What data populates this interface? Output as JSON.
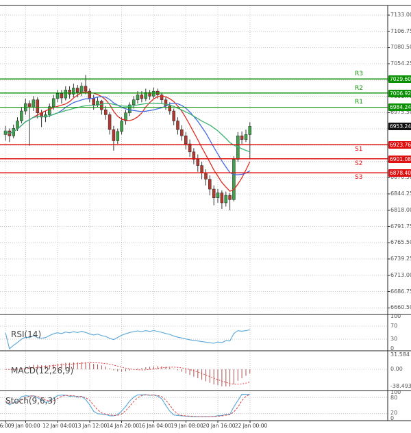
{
  "chart_data": {
    "type": "candlestick",
    "x_axis": {
      "labels": [
        {
          "text": "6:00",
          "index": 0
        },
        {
          "text": "9 Jan 00:00",
          "index": 5
        },
        {
          "text": "12 Jan 04:00",
          "index": 13
        },
        {
          "text": "13 Jan 12:00",
          "index": 21
        },
        {
          "text": "14 Jan 20:00",
          "index": 29
        },
        {
          "text": "16 Jan 04:00",
          "index": 37
        },
        {
          "text": "19 Jan 08:00",
          "index": 45
        },
        {
          "text": "20 Jan 16:00",
          "index": 53
        },
        {
          "text": "22 Jan 00:00",
          "index": 61
        }
      ]
    },
    "price_axis": {
      "tick_labels": [
        "7133.00",
        "7106.75",
        "7080.50",
        "7054.25",
        "7028.00",
        "7001.75",
        "6975.50",
        "6949.25",
        "6923.00",
        "6896.75",
        "6870.50",
        "6844.25",
        "6818.00",
        "6791.75",
        "6765.50",
        "6739.25",
        "6713.00",
        "6686.75",
        "6660.50"
      ]
    },
    "candles": [
      [
        6940,
        6954,
        6930,
        6946
      ],
      [
        6946,
        6950,
        6928,
        6938
      ],
      [
        6938,
        6956,
        6934,
        6950
      ],
      [
        6950,
        6968,
        6946,
        6962
      ],
      [
        6962,
        6984,
        6958,
        6978
      ],
      [
        6978,
        6998,
        6972,
        6990
      ],
      [
        6990,
        6995,
        6922,
        6984
      ],
      [
        6984,
        7002,
        6978,
        6996
      ],
      [
        6996,
        7000,
        6966,
        6975
      ],
      [
        6975,
        6980,
        6952,
        6968
      ],
      [
        6968,
        6978,
        6960,
        6972
      ],
      [
        6972,
        6990,
        6968,
        6985
      ],
      [
        6985,
        7004,
        6980,
        6998
      ],
      [
        6998,
        7012,
        6992,
        7006
      ],
      [
        7006,
        7012,
        6990,
        6999
      ],
      [
        6999,
        7018,
        6995,
        7012
      ],
      [
        7012,
        7018,
        6998,
        7005
      ],
      [
        7005,
        7022,
        7000,
        7015
      ],
      [
        7015,
        7020,
        7000,
        7008
      ],
      [
        7008,
        7024,
        7002,
        7018
      ],
      [
        7018,
        7036,
        7005,
        7010
      ],
      [
        7010,
        7014,
        6992,
        6998
      ],
      [
        6998,
        7004,
        6980,
        6988
      ],
      [
        6988,
        7000,
        6984,
        6994
      ],
      [
        6994,
        6996,
        6972,
        6980
      ],
      [
        6980,
        6986,
        6964,
        6972
      ],
      [
        6972,
        6976,
        6940,
        6948
      ],
      [
        6948,
        6954,
        6914,
        6930
      ],
      [
        6930,
        6950,
        6925,
        6945
      ],
      [
        6945,
        6968,
        6940,
        6962
      ],
      [
        6962,
        6980,
        6956,
        6975
      ],
      [
        6975,
        6992,
        6970,
        6988
      ],
      [
        6988,
        7002,
        6982,
        6996
      ],
      [
        6996,
        7010,
        6990,
        7004
      ],
      [
        7004,
        7010,
        6992,
        6998
      ],
      [
        6998,
        7014,
        6994,
        7008
      ],
      [
        7008,
        7012,
        6996,
        7002
      ],
      [
        7002,
        7016,
        6998,
        7010
      ],
      [
        7010,
        7014,
        6998,
        7004
      ],
      [
        7004,
        7008,
        6990,
        6996
      ],
      [
        6996,
        7000,
        6980,
        6986
      ],
      [
        6986,
        6992,
        6972,
        6978
      ],
      [
        6978,
        6982,
        6955,
        6962
      ],
      [
        6962,
        6968,
        6940,
        6948
      ],
      [
        6948,
        6955,
        6930,
        6938
      ],
      [
        6938,
        6944,
        6916,
        6925
      ],
      [
        6925,
        6932,
        6904,
        6912
      ],
      [
        6912,
        6918,
        6892,
        6900
      ],
      [
        6900,
        6908,
        6880,
        6890
      ],
      [
        6890,
        6896,
        6868,
        6878
      ],
      [
        6878,
        6884,
        6858,
        6868
      ],
      [
        6868,
        6874,
        6842,
        6852
      ],
      [
        6852,
        6858,
        6826,
        6838
      ],
      [
        6838,
        6852,
        6830,
        6846
      ],
      [
        6846,
        6850,
        6820,
        6830
      ],
      [
        6830,
        6848,
        6824,
        6842
      ],
      [
        6842,
        6846,
        6818,
        6835
      ],
      [
        6835,
        6905,
        6832,
        6900
      ],
      [
        6900,
        6944,
        6896,
        6938
      ],
      [
        6938,
        6945,
        6925,
        6932
      ],
      [
        6932,
        6948,
        6928,
        6940
      ],
      [
        6940,
        6960,
        6902,
        6953.24
      ]
    ],
    "levels": {
      "resistance": [
        {
          "label": "R3",
          "value": 7029.6,
          "display": "7029.60"
        },
        {
          "label": "R2",
          "value": 7006.92,
          "display": "7006.92"
        },
        {
          "label": "R1",
          "value": 6984.24,
          "display": "6984.24"
        }
      ],
      "support": [
        {
          "label": "S1",
          "value": 6923.76,
          "display": "6923.76"
        },
        {
          "label": "S2",
          "value": 6901.08,
          "display": "6901.08"
        },
        {
          "label": "S3",
          "value": 6878.4,
          "display": "6878.40"
        }
      ],
      "last_price": {
        "value": 6953.24,
        "display": "6953.24"
      }
    },
    "moving_averages": [
      {
        "name": "ma-fast",
        "period": 8
      },
      {
        "name": "ma-mid",
        "period": 14
      },
      {
        "name": "ma-slow",
        "period": 24
      }
    ],
    "indicators": {
      "rsi": {
        "label": "RSI(14)",
        "period": 14,
        "ticks": [
          "100",
          "70",
          "30",
          "0"
        ],
        "guides": [
          70,
          30
        ]
      },
      "macd": {
        "label": "MACD(12,26,9)",
        "fast": 12,
        "slow": 26,
        "signal": 9,
        "ticks": [
          "31.584",
          "0.00",
          "-38.493"
        ],
        "range": [
          -44,
          38
        ]
      },
      "stoch": {
        "label": "Stoch(9,6,3)",
        "k": 9,
        "d": 6,
        "slowing": 3,
        "ticks": [
          "100",
          "80",
          "20",
          "0"
        ],
        "guides": [
          80,
          20
        ]
      }
    },
    "colors": {
      "up": "#3fa24a",
      "down": "#b03a30",
      "wick": "#333333",
      "ma_fast": "#e02a20",
      "ma_mid": "#4169e1",
      "ma_slow": "#3cb371",
      "resistance": "#089000",
      "support": "#e01010",
      "last": "#101010",
      "rsi": "#58a6d8",
      "macd_hist": "#a85050",
      "macd_signal": "#e04040",
      "stoch_k": "#58a6d8",
      "stoch_d": "#d04040",
      "grid": "#c9c9c9",
      "frame": "#222222"
    }
  }
}
